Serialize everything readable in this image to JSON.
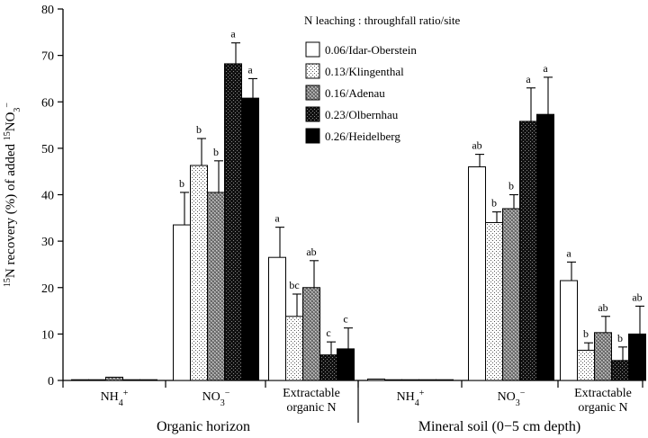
{
  "chart_data": {
    "type": "bar",
    "title": "",
    "ylabel_parts": [
      "15",
      "N recovery (%) of added ",
      "15",
      "NO",
      "3",
      "−"
    ],
    "ylim": [
      0,
      80
    ],
    "yticks": [
      0,
      10,
      20,
      30,
      40,
      50,
      60,
      70,
      80
    ],
    "grid": false,
    "legend_position": "top-right",
    "legend_title": "N leaching : throughfall ratio/site",
    "groups": [
      {
        "name": "Organic horizon",
        "categories": [
          {
            "parts": [
              "NH",
              "4",
              "+"
            ]
          },
          {
            "parts": [
              "NO",
              "3",
              "−"
            ]
          },
          {
            "lines": [
              "Extractable",
              "organic N"
            ]
          }
        ]
      },
      {
        "name": "Mineral soil (0−5 cm depth)",
        "categories": [
          {
            "parts": [
              "NH",
              "4",
              "+"
            ]
          },
          {
            "parts": [
              "NO",
              "3",
              "−"
            ]
          },
          {
            "lines": [
              "Extractable",
              "organic N"
            ]
          }
        ]
      }
    ],
    "series": [
      {
        "name": "0.06/Idar-Oberstein",
        "pattern": "open",
        "values": [
          0.1,
          33.5,
          26.5,
          0.3,
          46.0,
          21.5
        ],
        "errors": [
          0,
          7.0,
          6.5,
          0,
          2.7,
          4.0
        ],
        "labels": [
          "",
          "b",
          "a",
          "",
          "ab",
          "a"
        ]
      },
      {
        "name": "0.13/Klingenthal",
        "pattern": "dots-light",
        "values": [
          0.1,
          46.3,
          13.8,
          0.1,
          34.0,
          6.5
        ],
        "errors": [
          0,
          5.8,
          4.8,
          0,
          2.3,
          1.6
        ],
        "labels": [
          "",
          "b",
          "bc",
          "",
          "b",
          "b"
        ]
      },
      {
        "name": "0.16/Adenau",
        "pattern": "checker-grey",
        "values": [
          0.7,
          40.5,
          20.0,
          0.1,
          37.0,
          10.3
        ],
        "errors": [
          0,
          6.8,
          5.8,
          0,
          3.0,
          3.5
        ],
        "labels": [
          "",
          "b",
          "ab",
          "",
          "b",
          "ab"
        ]
      },
      {
        "name": "0.23/Olbernhau",
        "pattern": "dots-dark",
        "values": [
          0.1,
          68.2,
          5.5,
          0.1,
          55.8,
          4.3
        ],
        "errors": [
          0,
          4.5,
          2.8,
          0,
          7.2,
          2.9
        ],
        "labels": [
          "",
          "a",
          "c",
          "",
          "a",
          "b"
        ]
      },
      {
        "name": "0.26/Heidelberg",
        "pattern": "solid",
        "values": [
          0.1,
          60.8,
          6.8,
          0.1,
          57.3,
          10.0
        ],
        "errors": [
          0,
          4.2,
          4.5,
          0,
          8.0,
          6.0
        ],
        "labels": [
          "",
          "a",
          "c",
          "",
          "a",
          "ab"
        ]
      }
    ]
  }
}
